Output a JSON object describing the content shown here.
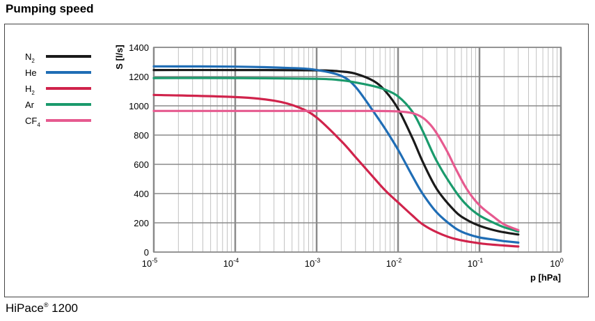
{
  "page": {
    "title": "Pumping speed",
    "caption_main": "HiPace",
    "caption_reg": "®",
    "caption_model": " 1200"
  },
  "colors": {
    "N2": "#1a1a1a",
    "He": "#1f6db5",
    "H2": "#d0234b",
    "Ar": "#1a9a6c",
    "CF4": "#e65a8f",
    "grid": "#9a9a9a"
  },
  "chart_data": {
    "type": "line",
    "title": "Pumping speed",
    "xlabel": "p [hPa]",
    "ylabel": "S [l/s]",
    "x_scale": "log",
    "xlim": [
      1e-05,
      1
    ],
    "ylim": [
      0,
      1400
    ],
    "x_ticks": [
      {
        "base": "10",
        "exp": "-5"
      },
      {
        "base": "10",
        "exp": "-4"
      },
      {
        "base": "10",
        "exp": "-3"
      },
      {
        "base": "10",
        "exp": "-2"
      },
      {
        "base": "10",
        "exp": "-1"
      },
      {
        "base": "10",
        "exp": "0"
      }
    ],
    "y_ticks": [
      "0",
      "200",
      "400",
      "600",
      "800",
      "1000",
      "1200",
      "1400"
    ],
    "grid": true,
    "legend_position": "top-left",
    "series": [
      {
        "key": "N2",
        "name": "N",
        "sub": "2",
        "points": [
          [
            1e-05,
            1245
          ],
          [
            0.0001,
            1245
          ],
          [
            0.001,
            1243
          ],
          [
            0.002,
            1235
          ],
          [
            0.003,
            1220
          ],
          [
            0.005,
            1170
          ],
          [
            0.007,
            1100
          ],
          [
            0.01,
            980
          ],
          [
            0.015,
            780
          ],
          [
            0.02,
            620
          ],
          [
            0.03,
            430
          ],
          [
            0.05,
            280
          ],
          [
            0.07,
            220
          ],
          [
            0.1,
            180
          ],
          [
            0.15,
            150
          ],
          [
            0.2,
            135
          ],
          [
            0.3,
            120
          ]
        ]
      },
      {
        "key": "He",
        "name": "He",
        "sub": "",
        "points": [
          [
            1e-05,
            1270
          ],
          [
            0.0001,
            1268
          ],
          [
            0.0005,
            1258
          ],
          [
            0.001,
            1245
          ],
          [
            0.002,
            1205
          ],
          [
            0.003,
            1130
          ],
          [
            0.005,
            960
          ],
          [
            0.007,
            840
          ],
          [
            0.01,
            700
          ],
          [
            0.015,
            520
          ],
          [
            0.02,
            400
          ],
          [
            0.03,
            270
          ],
          [
            0.05,
            165
          ],
          [
            0.07,
            125
          ],
          [
            0.1,
            100
          ],
          [
            0.15,
            85
          ],
          [
            0.2,
            75
          ],
          [
            0.3,
            65
          ]
        ]
      },
      {
        "key": "H2",
        "name": "H",
        "sub": "2",
        "points": [
          [
            1e-05,
            1075
          ],
          [
            0.0001,
            1060
          ],
          [
            0.0003,
            1035
          ],
          [
            0.0006,
            990
          ],
          [
            0.001,
            920
          ],
          [
            0.002,
            760
          ],
          [
            0.003,
            650
          ],
          [
            0.005,
            510
          ],
          [
            0.007,
            420
          ],
          [
            0.01,
            340
          ],
          [
            0.015,
            250
          ],
          [
            0.02,
            190
          ],
          [
            0.03,
            135
          ],
          [
            0.05,
            90
          ],
          [
            0.1,
            60
          ],
          [
            0.2,
            45
          ],
          [
            0.3,
            38
          ]
        ]
      },
      {
        "key": "Ar",
        "name": "Ar",
        "sub": "",
        "points": [
          [
            1e-05,
            1190
          ],
          [
            0.0001,
            1190
          ],
          [
            0.001,
            1185
          ],
          [
            0.002,
            1175
          ],
          [
            0.003,
            1160
          ],
          [
            0.005,
            1135
          ],
          [
            0.007,
            1110
          ],
          [
            0.01,
            1065
          ],
          [
            0.015,
            960
          ],
          [
            0.02,
            830
          ],
          [
            0.03,
            620
          ],
          [
            0.05,
            420
          ],
          [
            0.07,
            320
          ],
          [
            0.1,
            250
          ],
          [
            0.15,
            200
          ],
          [
            0.2,
            170
          ],
          [
            0.3,
            140
          ]
        ]
      },
      {
        "key": "CF4",
        "name": "CF",
        "sub": "4",
        "points": [
          [
            1e-05,
            965
          ],
          [
            0.0001,
            965
          ],
          [
            0.001,
            965
          ],
          [
            0.005,
            965
          ],
          [
            0.01,
            962
          ],
          [
            0.015,
            950
          ],
          [
            0.02,
            920
          ],
          [
            0.025,
            870
          ],
          [
            0.03,
            810
          ],
          [
            0.04,
            690
          ],
          [
            0.05,
            580
          ],
          [
            0.07,
            430
          ],
          [
            0.1,
            320
          ],
          [
            0.15,
            240
          ],
          [
            0.2,
            190
          ],
          [
            0.3,
            150
          ]
        ]
      }
    ]
  }
}
